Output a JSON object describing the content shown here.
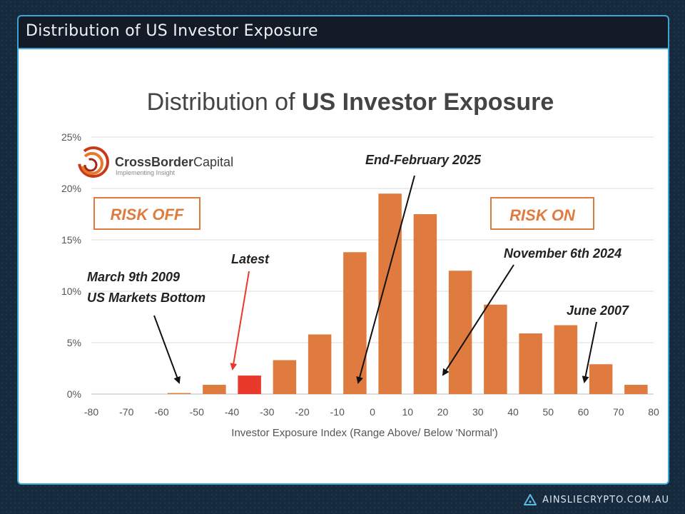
{
  "header": {
    "title": "Distribution of US Investor Exposure"
  },
  "footer": {
    "site": "AINSLIECRYPTO.COM.AU",
    "icon": "triangle-logo-icon"
  },
  "logo": {
    "name_bold": "CrossBorder",
    "name_light": "Capital",
    "tagline": "Implementing Insight"
  },
  "boxes": {
    "risk_off": "RISK OFF",
    "risk_on": "RISK ON"
  },
  "colors": {
    "bar": "#e07b3f",
    "highlight": "#e8392b",
    "accent": "#3aa6d6",
    "arrow_highlight": "#e8392b"
  },
  "annotations": [
    {
      "id": "march-2009",
      "lines": [
        "March 9th 2009",
        "US Markets Bottom"
      ],
      "target_x": -55
    },
    {
      "id": "latest",
      "lines": [
        "Latest"
      ],
      "target_x": -40
    },
    {
      "id": "feb-2025",
      "lines": [
        "End-February 2025"
      ],
      "target_x": 0
    },
    {
      "id": "nov-2024",
      "lines": [
        "November 6th 2024"
      ],
      "target_x": 20
    },
    {
      "id": "june-2007",
      "lines": [
        "June 2007"
      ],
      "target_x": 65
    }
  ],
  "chart_data": {
    "type": "bar",
    "title_light": "Distribution of ",
    "title_bold": "US Investor Exposure",
    "title": "Distribution of US Investor Exposure",
    "xlabel": "Investor Exposure Index  (Range Above/ Below 'Normal')",
    "ylabel": "",
    "x_ticks": [
      -80,
      -70,
      -60,
      -50,
      -40,
      -30,
      -20,
      -10,
      0,
      10,
      20,
      30,
      40,
      50,
      60,
      70,
      80
    ],
    "y_ticks": [
      "0%",
      "5%",
      "10%",
      "15%",
      "20%",
      "25%"
    ],
    "ylim": [
      0,
      25
    ],
    "xlim": [
      -80,
      80
    ],
    "categories": [
      -80,
      -70,
      -60,
      -50,
      -40,
      -30,
      -20,
      -10,
      0,
      10,
      20,
      30,
      40,
      50,
      60,
      70
    ],
    "values": [
      0,
      0,
      0.1,
      0.9,
      1.8,
      3.3,
      5.8,
      13.8,
      19.5,
      17.5,
      12.0,
      8.7,
      5.9,
      6.7,
      2.9,
      0.9
    ],
    "highlight_category": -40,
    "grid": true
  }
}
